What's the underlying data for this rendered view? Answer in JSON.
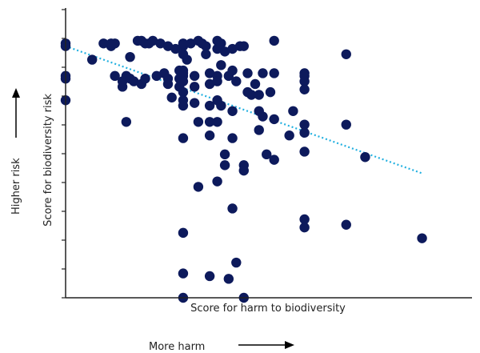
{
  "chart_data": {
    "type": "scatter",
    "xlabel": "Score for harm to biodiversity",
    "ylabel": "Score for biodiversity risk",
    "x_direction_label": "More harm",
    "y_direction_label": "Higher risk",
    "x_tick_labels": [],
    "y_tick_labels": [],
    "xlim": [
      0,
      100
    ],
    "ylim": [
      0,
      100
    ],
    "grid": false,
    "colors": {
      "points": "#0d1a5c",
      "trendline": "#22b0e0",
      "axis": "#222222"
    },
    "trendline": {
      "style": "dotted",
      "x": [
        0,
        94
      ],
      "y": [
        93,
        46
      ]
    },
    "points": [
      {
        "x": 0,
        "y": 94
      },
      {
        "x": 0,
        "y": 93
      },
      {
        "x": 0,
        "y": 82
      },
      {
        "x": 0,
        "y": 81
      },
      {
        "x": 0,
        "y": 73
      },
      {
        "x": 7,
        "y": 88
      },
      {
        "x": 10,
        "y": 94
      },
      {
        "x": 12,
        "y": 93
      },
      {
        "x": 12,
        "y": 94
      },
      {
        "x": 13,
        "y": 94
      },
      {
        "x": 13,
        "y": 82
      },
      {
        "x": 15,
        "y": 80
      },
      {
        "x": 15,
        "y": 78
      },
      {
        "x": 16,
        "y": 65
      },
      {
        "x": 16,
        "y": 82
      },
      {
        "x": 17,
        "y": 89
      },
      {
        "x": 17,
        "y": 81
      },
      {
        "x": 18,
        "y": 80
      },
      {
        "x": 19,
        "y": 95
      },
      {
        "x": 20,
        "y": 95
      },
      {
        "x": 20,
        "y": 79
      },
      {
        "x": 21,
        "y": 94
      },
      {
        "x": 21,
        "y": 81
      },
      {
        "x": 22,
        "y": 94
      },
      {
        "x": 23,
        "y": 95
      },
      {
        "x": 24,
        "y": 82
      },
      {
        "x": 25,
        "y": 94
      },
      {
        "x": 26,
        "y": 83
      },
      {
        "x": 27,
        "y": 81
      },
      {
        "x": 27,
        "y": 79
      },
      {
        "x": 27,
        "y": 93
      },
      {
        "x": 28,
        "y": 74
      },
      {
        "x": 29,
        "y": 92
      },
      {
        "x": 30,
        "y": 84
      },
      {
        "x": 30,
        "y": 81
      },
      {
        "x": 30,
        "y": 78
      },
      {
        "x": 31,
        "y": 93
      },
      {
        "x": 31,
        "y": 94
      },
      {
        "x": 31,
        "y": 90
      },
      {
        "x": 31,
        "y": 84
      },
      {
        "x": 31,
        "y": 83
      },
      {
        "x": 31,
        "y": 82
      },
      {
        "x": 31,
        "y": 80
      },
      {
        "x": 31,
        "y": 76
      },
      {
        "x": 31,
        "y": 73
      },
      {
        "x": 31,
        "y": 71
      },
      {
        "x": 31,
        "y": 59
      },
      {
        "x": 31,
        "y": 24
      },
      {
        "x": 31,
        "y": 9
      },
      {
        "x": 31,
        "y": 0
      },
      {
        "x": 32,
        "y": 88
      },
      {
        "x": 33,
        "y": 94
      },
      {
        "x": 34,
        "y": 82
      },
      {
        "x": 34,
        "y": 78
      },
      {
        "x": 34,
        "y": 72
      },
      {
        "x": 35,
        "y": 95
      },
      {
        "x": 35,
        "y": 65
      },
      {
        "x": 35,
        "y": 41
      },
      {
        "x": 36,
        "y": 94
      },
      {
        "x": 37,
        "y": 93
      },
      {
        "x": 37,
        "y": 90
      },
      {
        "x": 38,
        "y": 83
      },
      {
        "x": 38,
        "y": 79
      },
      {
        "x": 38,
        "y": 71
      },
      {
        "x": 38,
        "y": 65
      },
      {
        "x": 38,
        "y": 60
      },
      {
        "x": 38,
        "y": 8
      },
      {
        "x": 40,
        "y": 95
      },
      {
        "x": 40,
        "y": 92
      },
      {
        "x": 40,
        "y": 82
      },
      {
        "x": 40,
        "y": 80
      },
      {
        "x": 40,
        "y": 73
      },
      {
        "x": 40,
        "y": 65
      },
      {
        "x": 40,
        "y": 43
      },
      {
        "x": 41,
        "y": 94
      },
      {
        "x": 41,
        "y": 86
      },
      {
        "x": 41,
        "y": 71
      },
      {
        "x": 42,
        "y": 91
      },
      {
        "x": 42,
        "y": 53
      },
      {
        "x": 42,
        "y": 49
      },
      {
        "x": 43,
        "y": 82
      },
      {
        "x": 43,
        "y": 7
      },
      {
        "x": 44,
        "y": 92
      },
      {
        "x": 44,
        "y": 84
      },
      {
        "x": 44,
        "y": 69
      },
      {
        "x": 44,
        "y": 33
      },
      {
        "x": 44,
        "y": 59
      },
      {
        "x": 45,
        "y": 80
      },
      {
        "x": 45,
        "y": 13
      },
      {
        "x": 46,
        "y": 93
      },
      {
        "x": 47,
        "y": 93
      },
      {
        "x": 47,
        "y": 49
      },
      {
        "x": 47,
        "y": 47
      },
      {
        "x": 47,
        "y": 0
      },
      {
        "x": 48,
        "y": 76
      },
      {
        "x": 48,
        "y": 83
      },
      {
        "x": 49,
        "y": 75
      },
      {
        "x": 50,
        "y": 79
      },
      {
        "x": 51,
        "y": 62
      },
      {
        "x": 51,
        "y": 75
      },
      {
        "x": 51,
        "y": 69
      },
      {
        "x": 52,
        "y": 67
      },
      {
        "x": 52,
        "y": 83
      },
      {
        "x": 53,
        "y": 53
      },
      {
        "x": 54,
        "y": 76
      },
      {
        "x": 55,
        "y": 95
      },
      {
        "x": 55,
        "y": 66
      },
      {
        "x": 55,
        "y": 51
      },
      {
        "x": 55,
        "y": 83
      },
      {
        "x": 59,
        "y": 60
      },
      {
        "x": 60,
        "y": 69
      },
      {
        "x": 63,
        "y": 83
      },
      {
        "x": 63,
        "y": 82
      },
      {
        "x": 63,
        "y": 80
      },
      {
        "x": 63,
        "y": 77
      },
      {
        "x": 63,
        "y": 64
      },
      {
        "x": 63,
        "y": 61
      },
      {
        "x": 63,
        "y": 54
      },
      {
        "x": 63,
        "y": 29
      },
      {
        "x": 63,
        "y": 26
      },
      {
        "x": 74,
        "y": 90
      },
      {
        "x": 74,
        "y": 64
      },
      {
        "x": 74,
        "y": 27
      },
      {
        "x": 79,
        "y": 52
      },
      {
        "x": 94,
        "y": 22
      }
    ]
  }
}
